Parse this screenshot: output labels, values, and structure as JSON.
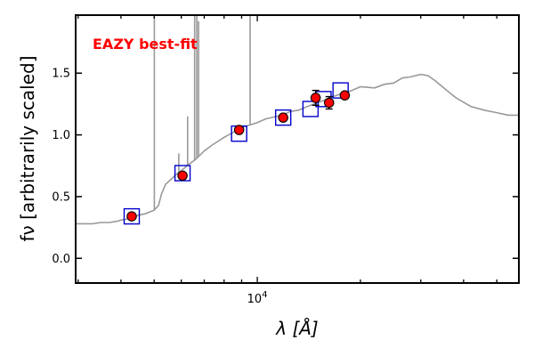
{
  "chart_data": {
    "type": "scatter",
    "title": "",
    "annotation": "EAZY best-fit",
    "xlabel": "λ [Å]",
    "ylabel": "fν [arbitrarily scaled]",
    "x_scale": "log",
    "xlim": [
      2950,
      58000
    ],
    "ylim": [
      -0.2,
      1.97
    ],
    "x_tick_labels": [
      {
        "value": 10000,
        "label": "10",
        "exponent": "4"
      }
    ],
    "y_ticks": [
      0.0,
      0.5,
      1.0,
      1.5
    ],
    "y_tick_labels": [
      "0.0",
      "0.5",
      "1.0",
      "1.5"
    ],
    "series": [
      {
        "name": "template",
        "kind": "line",
        "color": "#999999",
        "points": [
          [
            2950,
            0.28
          ],
          [
            3100,
            0.28
          ],
          [
            3300,
            0.28
          ],
          [
            3500,
            0.29
          ],
          [
            3700,
            0.29
          ],
          [
            3900,
            0.3
          ],
          [
            4000,
            0.31
          ],
          [
            4200,
            0.32
          ],
          [
            4350,
            0.33
          ],
          [
            4500,
            0.35
          ],
          [
            4700,
            0.36
          ],
          [
            4900,
            0.38
          ],
          [
            5000,
            0.39
          ],
          [
            5150,
            0.43
          ],
          [
            5250,
            0.52
          ],
          [
            5400,
            0.6
          ],
          [
            5600,
            0.64
          ],
          [
            5800,
            0.68
          ],
          [
            6000,
            0.71
          ],
          [
            6300,
            0.76
          ],
          [
            6600,
            0.8
          ],
          [
            7000,
            0.87
          ],
          [
            7400,
            0.92
          ],
          [
            7700,
            0.95
          ],
          [
            8000,
            0.98
          ],
          [
            8500,
            1.02
          ],
          [
            9000,
            1.06
          ],
          [
            9500,
            1.08
          ],
          [
            10000,
            1.1
          ],
          [
            10600,
            1.13
          ],
          [
            11000,
            1.14
          ],
          [
            11800,
            1.16
          ],
          [
            12500,
            1.19
          ],
          [
            13200,
            1.2
          ],
          [
            14000,
            1.23
          ],
          [
            15000,
            1.26
          ],
          [
            16000,
            1.29
          ],
          [
            17000,
            1.32
          ],
          [
            18500,
            1.35
          ],
          [
            20000,
            1.39
          ],
          [
            22000,
            1.38
          ],
          [
            23500,
            1.41
          ],
          [
            25000,
            1.42
          ],
          [
            26500,
            1.46
          ],
          [
            28000,
            1.47
          ],
          [
            30000,
            1.49
          ],
          [
            31500,
            1.48
          ],
          [
            33000,
            1.44
          ],
          [
            35000,
            1.38
          ],
          [
            38000,
            1.3
          ],
          [
            42000,
            1.23
          ],
          [
            46000,
            1.2
          ],
          [
            50000,
            1.18
          ],
          [
            54000,
            1.16
          ],
          [
            58000,
            1.16
          ]
        ],
        "emission_lines": [
          {
            "x": 5006,
            "peak": 1.97
          },
          {
            "x": 5900,
            "peak": 0.85
          },
          {
            "x": 6260,
            "peak": 1.15
          },
          {
            "x": 6563,
            "peak": 1.97
          },
          {
            "x": 6660,
            "peak": 1.97
          },
          {
            "x": 6740,
            "peak": 1.92
          },
          {
            "x": 9530,
            "peak": 1.97
          }
        ]
      },
      {
        "name": "model fluxes",
        "kind": "open-square",
        "color": "#0000cc",
        "points": [
          [
            4300,
            0.34
          ],
          [
            6050,
            0.69
          ],
          [
            8850,
            1.01
          ],
          [
            11900,
            1.14
          ],
          [
            14300,
            1.21
          ],
          [
            15600,
            1.29
          ],
          [
            17500,
            1.36
          ]
        ]
      },
      {
        "name": "observed fluxes",
        "kind": "filled-circle",
        "color": "#ff0000",
        "points": [
          {
            "x": 4300,
            "y": 0.34,
            "err": 0.0
          },
          {
            "x": 6050,
            "y": 0.67,
            "err": 0.02
          },
          {
            "x": 8850,
            "y": 1.04,
            "err": 0.01
          },
          {
            "x": 11900,
            "y": 1.14,
            "err": 0.0
          },
          {
            "x": 14800,
            "y": 1.3,
            "err": 0.06
          },
          {
            "x": 16200,
            "y": 1.26,
            "err": 0.05
          },
          {
            "x": 18000,
            "y": 1.32,
            "err": 0.02
          }
        ]
      }
    ]
  }
}
